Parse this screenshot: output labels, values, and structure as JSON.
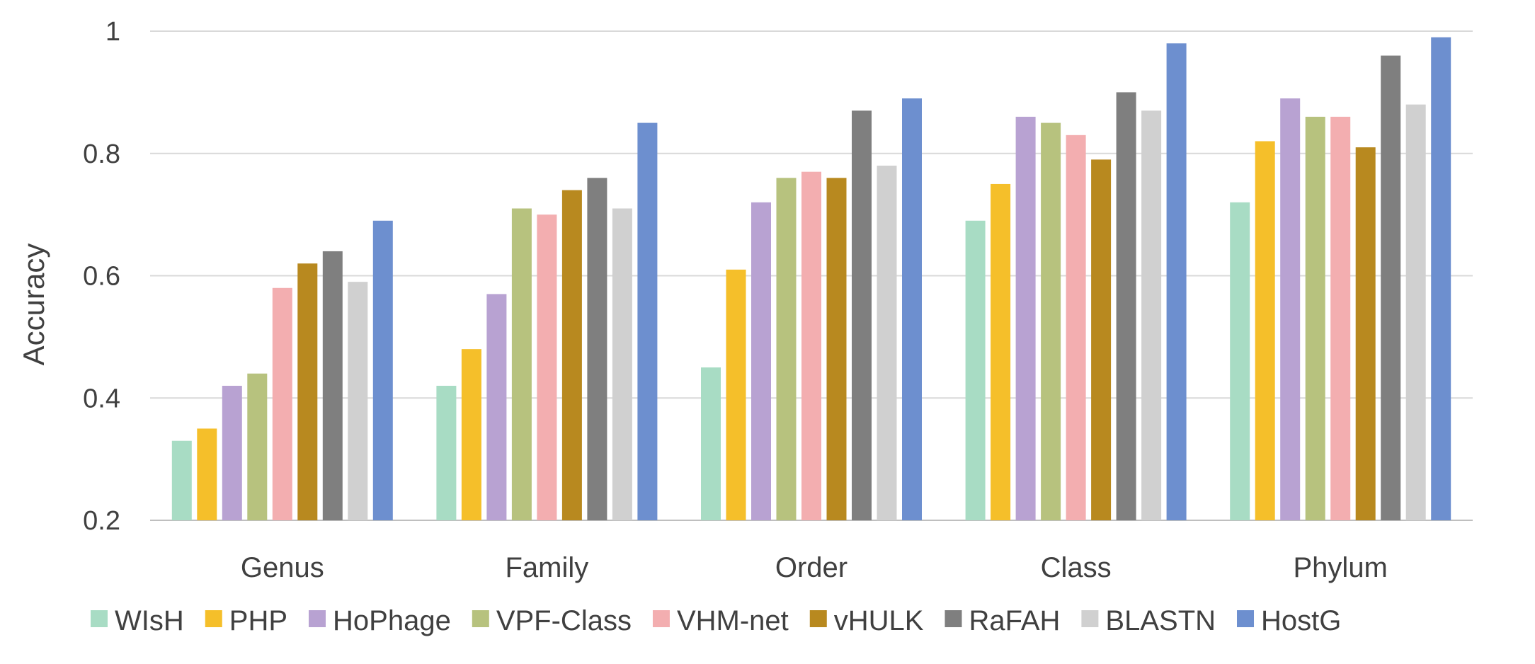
{
  "chart_data": {
    "type": "bar",
    "title": "",
    "xlabel": "",
    "ylabel": "Accuracy",
    "ylim": [
      0.2,
      1.0
    ],
    "yticks": [
      0.2,
      0.4,
      0.6,
      0.8,
      1.0
    ],
    "ytick_labels": [
      "0.2",
      "0.4",
      "0.6",
      "0.8",
      "1"
    ],
    "grid": true,
    "legend_position": "bottom",
    "categories": [
      "Genus",
      "Family",
      "Order",
      "Class",
      "Phylum"
    ],
    "series": [
      {
        "name": "WIsH",
        "color": "#a8dcc4",
        "values": [
          0.33,
          0.42,
          0.45,
          0.69,
          0.72
        ]
      },
      {
        "name": "PHP",
        "color": "#f5bf2a",
        "values": [
          0.35,
          0.48,
          0.61,
          0.75,
          0.82
        ]
      },
      {
        "name": "HoPhage",
        "color": "#b8a2d2",
        "values": [
          0.42,
          0.57,
          0.72,
          0.86,
          0.89
        ]
      },
      {
        "name": "VPF-Class",
        "color": "#b7c27e",
        "values": [
          0.44,
          0.71,
          0.76,
          0.85,
          0.86
        ]
      },
      {
        "name": "VHM-net",
        "color": "#f3aeb0",
        "values": [
          0.58,
          0.7,
          0.77,
          0.83,
          0.86
        ]
      },
      {
        "name": "vHULK",
        "color": "#b8891f",
        "values": [
          0.62,
          0.74,
          0.76,
          0.79,
          0.81
        ]
      },
      {
        "name": "RaFAH",
        "color": "#7f7f7f",
        "values": [
          0.64,
          0.76,
          0.87,
          0.9,
          0.96
        ]
      },
      {
        "name": "BLASTN",
        "color": "#d0d0d0",
        "values": [
          0.59,
          0.71,
          0.78,
          0.87,
          0.88
        ]
      },
      {
        "name": "HostG",
        "color": "#6d8fcf",
        "values": [
          0.69,
          0.85,
          0.89,
          0.98,
          0.99
        ]
      }
    ]
  }
}
